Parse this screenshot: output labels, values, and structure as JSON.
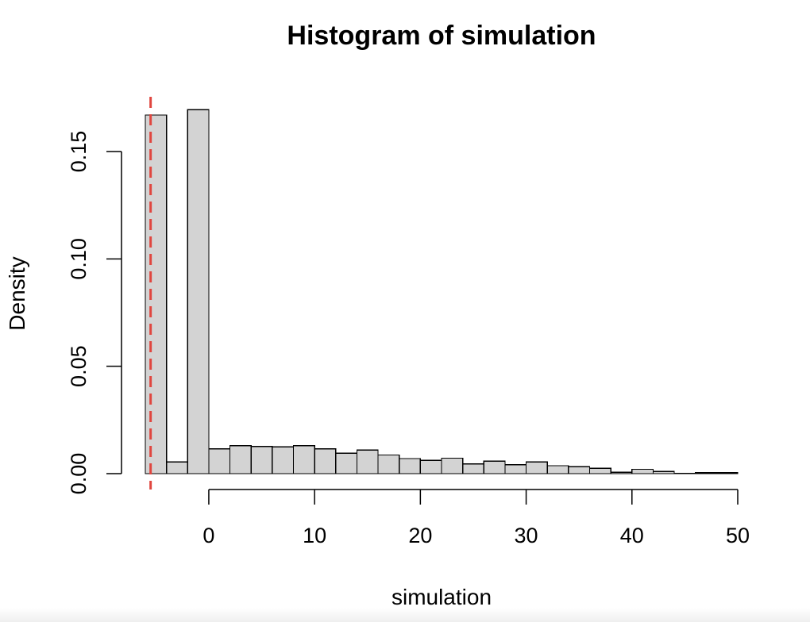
{
  "chart_data": {
    "type": "bar",
    "title": "Histogram of simulation",
    "xlabel": "simulation",
    "ylabel": "Density",
    "xlim": [
      -6,
      50
    ],
    "ylim": [
      0,
      0.15
    ],
    "x_ticks": [
      0,
      10,
      20,
      30,
      40,
      50
    ],
    "x_tick_labels": [
      "0",
      "10",
      "20",
      "30",
      "40",
      "50"
    ],
    "y_ticks": [
      0,
      0.05,
      0.1,
      0.15
    ],
    "y_tick_labels": [
      "0.00",
      "0.05",
      "0.10",
      "0.15"
    ],
    "bins": [
      {
        "x0": -6,
        "x1": -4,
        "density": 0.167
      },
      {
        "x0": -4,
        "x1": -2,
        "density": 0.0055
      },
      {
        "x0": -2,
        "x1": 0,
        "density": 0.1695
      },
      {
        "x0": 0,
        "x1": 2,
        "density": 0.0115
      },
      {
        "x0": 2,
        "x1": 4,
        "density": 0.013
      },
      {
        "x0": 4,
        "x1": 6,
        "density": 0.0127
      },
      {
        "x0": 6,
        "x1": 8,
        "density": 0.0125
      },
      {
        "x0": 8,
        "x1": 10,
        "density": 0.013
      },
      {
        "x0": 10,
        "x1": 12,
        "density": 0.0115
      },
      {
        "x0": 12,
        "x1": 14,
        "density": 0.0095
      },
      {
        "x0": 14,
        "x1": 16,
        "density": 0.011
      },
      {
        "x0": 16,
        "x1": 18,
        "density": 0.0087
      },
      {
        "x0": 18,
        "x1": 20,
        "density": 0.007
      },
      {
        "x0": 20,
        "x1": 22,
        "density": 0.0062
      },
      {
        "x0": 22,
        "x1": 24,
        "density": 0.0072
      },
      {
        "x0": 24,
        "x1": 26,
        "density": 0.0045
      },
      {
        "x0": 26,
        "x1": 28,
        "density": 0.0058
      },
      {
        "x0": 28,
        "x1": 30,
        "density": 0.0042
      },
      {
        "x0": 30,
        "x1": 32,
        "density": 0.0055
      },
      {
        "x0": 32,
        "x1": 34,
        "density": 0.0037
      },
      {
        "x0": 34,
        "x1": 36,
        "density": 0.0032
      },
      {
        "x0": 36,
        "x1": 38,
        "density": 0.0025
      },
      {
        "x0": 38,
        "x1": 40,
        "density": 0.0007
      },
      {
        "x0": 40,
        "x1": 42,
        "density": 0.002
      },
      {
        "x0": 42,
        "x1": 44,
        "density": 0.001
      },
      {
        "x0": 44,
        "x1": 46,
        "density": 0.0002
      },
      {
        "x0": 46,
        "x1": 48,
        "density": 0.0005
      },
      {
        "x0": 48,
        "x1": 50,
        "density": 0.0005
      }
    ],
    "reference_line": {
      "x": -5.5,
      "style": "dashed",
      "color": "#e0463f"
    },
    "bar_fill": "#d3d3d3",
    "bar_stroke": "#000000",
    "grid": false,
    "legend": false
  }
}
